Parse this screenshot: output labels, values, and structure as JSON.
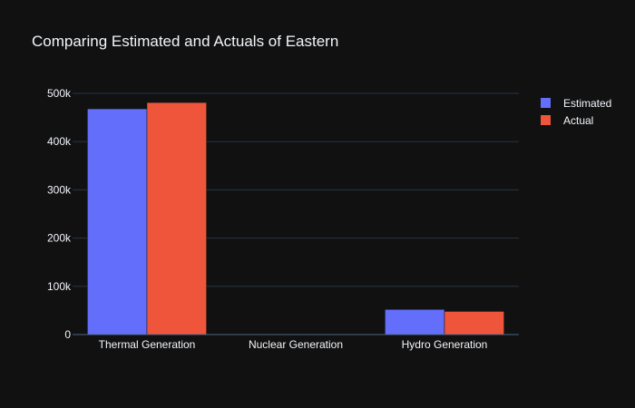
{
  "chart_data": {
    "type": "bar",
    "title": "Comparing Estimated and Actuals of Eastern",
    "xlabel": "",
    "ylabel": "",
    "categories": [
      "Thermal Generation",
      "Nuclear Generation",
      "Hydro Generation"
    ],
    "series": [
      {
        "name": "Estimated",
        "color": "#636efa",
        "values": [
          468000,
          0,
          52000
        ]
      },
      {
        "name": "Actual",
        "color": "#ef553b",
        "values": [
          481000,
          0,
          48000
        ]
      }
    ],
    "ylim": [
      0,
      500000
    ],
    "yticks": [
      0,
      100000,
      200000,
      300000,
      400000,
      500000
    ],
    "ytick_labels": [
      "0",
      "100k",
      "200k",
      "300k",
      "400k",
      "500k"
    ],
    "grid": true,
    "legend_position": "top-right",
    "background": "#111111"
  }
}
